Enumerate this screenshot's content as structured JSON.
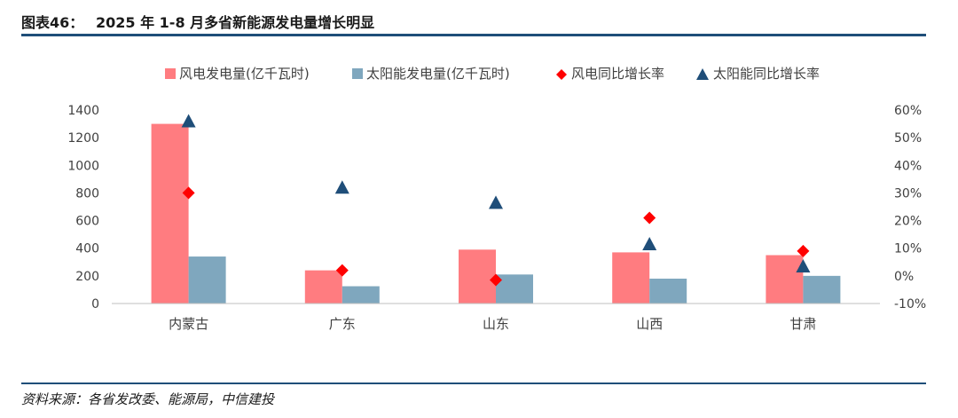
{
  "header": {
    "label": "图表46：",
    "title": "2025 年 1-8 月多省新能源发电量增长明显"
  },
  "source": "资料来源：各省发改委、能源局，中信建投",
  "colors": {
    "wind_bar": "#FF7C80",
    "solar_bar": "#7FA7BE",
    "wind_growth": "#FF0000",
    "solar_growth": "#1F4E79",
    "rule": "#1F4E79"
  },
  "chart_data": {
    "type": "bar",
    "categories": [
      "内蒙古",
      "广东",
      "山东",
      "山西",
      "甘肃"
    ],
    "series": [
      {
        "name": "风电发电量(亿千瓦时)",
        "kind": "bar",
        "axis": "left",
        "values": [
          1300,
          240,
          390,
          370,
          350
        ]
      },
      {
        "name": "太阳能发电量(亿千瓦时)",
        "kind": "bar",
        "axis": "left",
        "values": [
          340,
          125,
          210,
          180,
          200
        ]
      },
      {
        "name": "风电同比增长率",
        "kind": "scatter",
        "marker": "diamond",
        "axis": "right",
        "values": [
          30,
          2,
          -1.5,
          21,
          9
        ]
      },
      {
        "name": "太阳能同比增长率",
        "kind": "scatter",
        "marker": "triangle",
        "axis": "right",
        "values": [
          56,
          32,
          26.5,
          11.5,
          3.5
        ]
      }
    ],
    "y_left": {
      "ylim": [
        0,
        1400
      ],
      "ticks": [
        "0",
        "200",
        "400",
        "600",
        "800",
        "1000",
        "1200",
        "1400"
      ]
    },
    "y_right": {
      "ylim": [
        -10,
        60
      ],
      "ticks": [
        "-10%",
        "0%",
        "10%",
        "20%",
        "30%",
        "40%",
        "50%",
        "60%"
      ]
    },
    "legend_position": "top",
    "grid": false
  }
}
